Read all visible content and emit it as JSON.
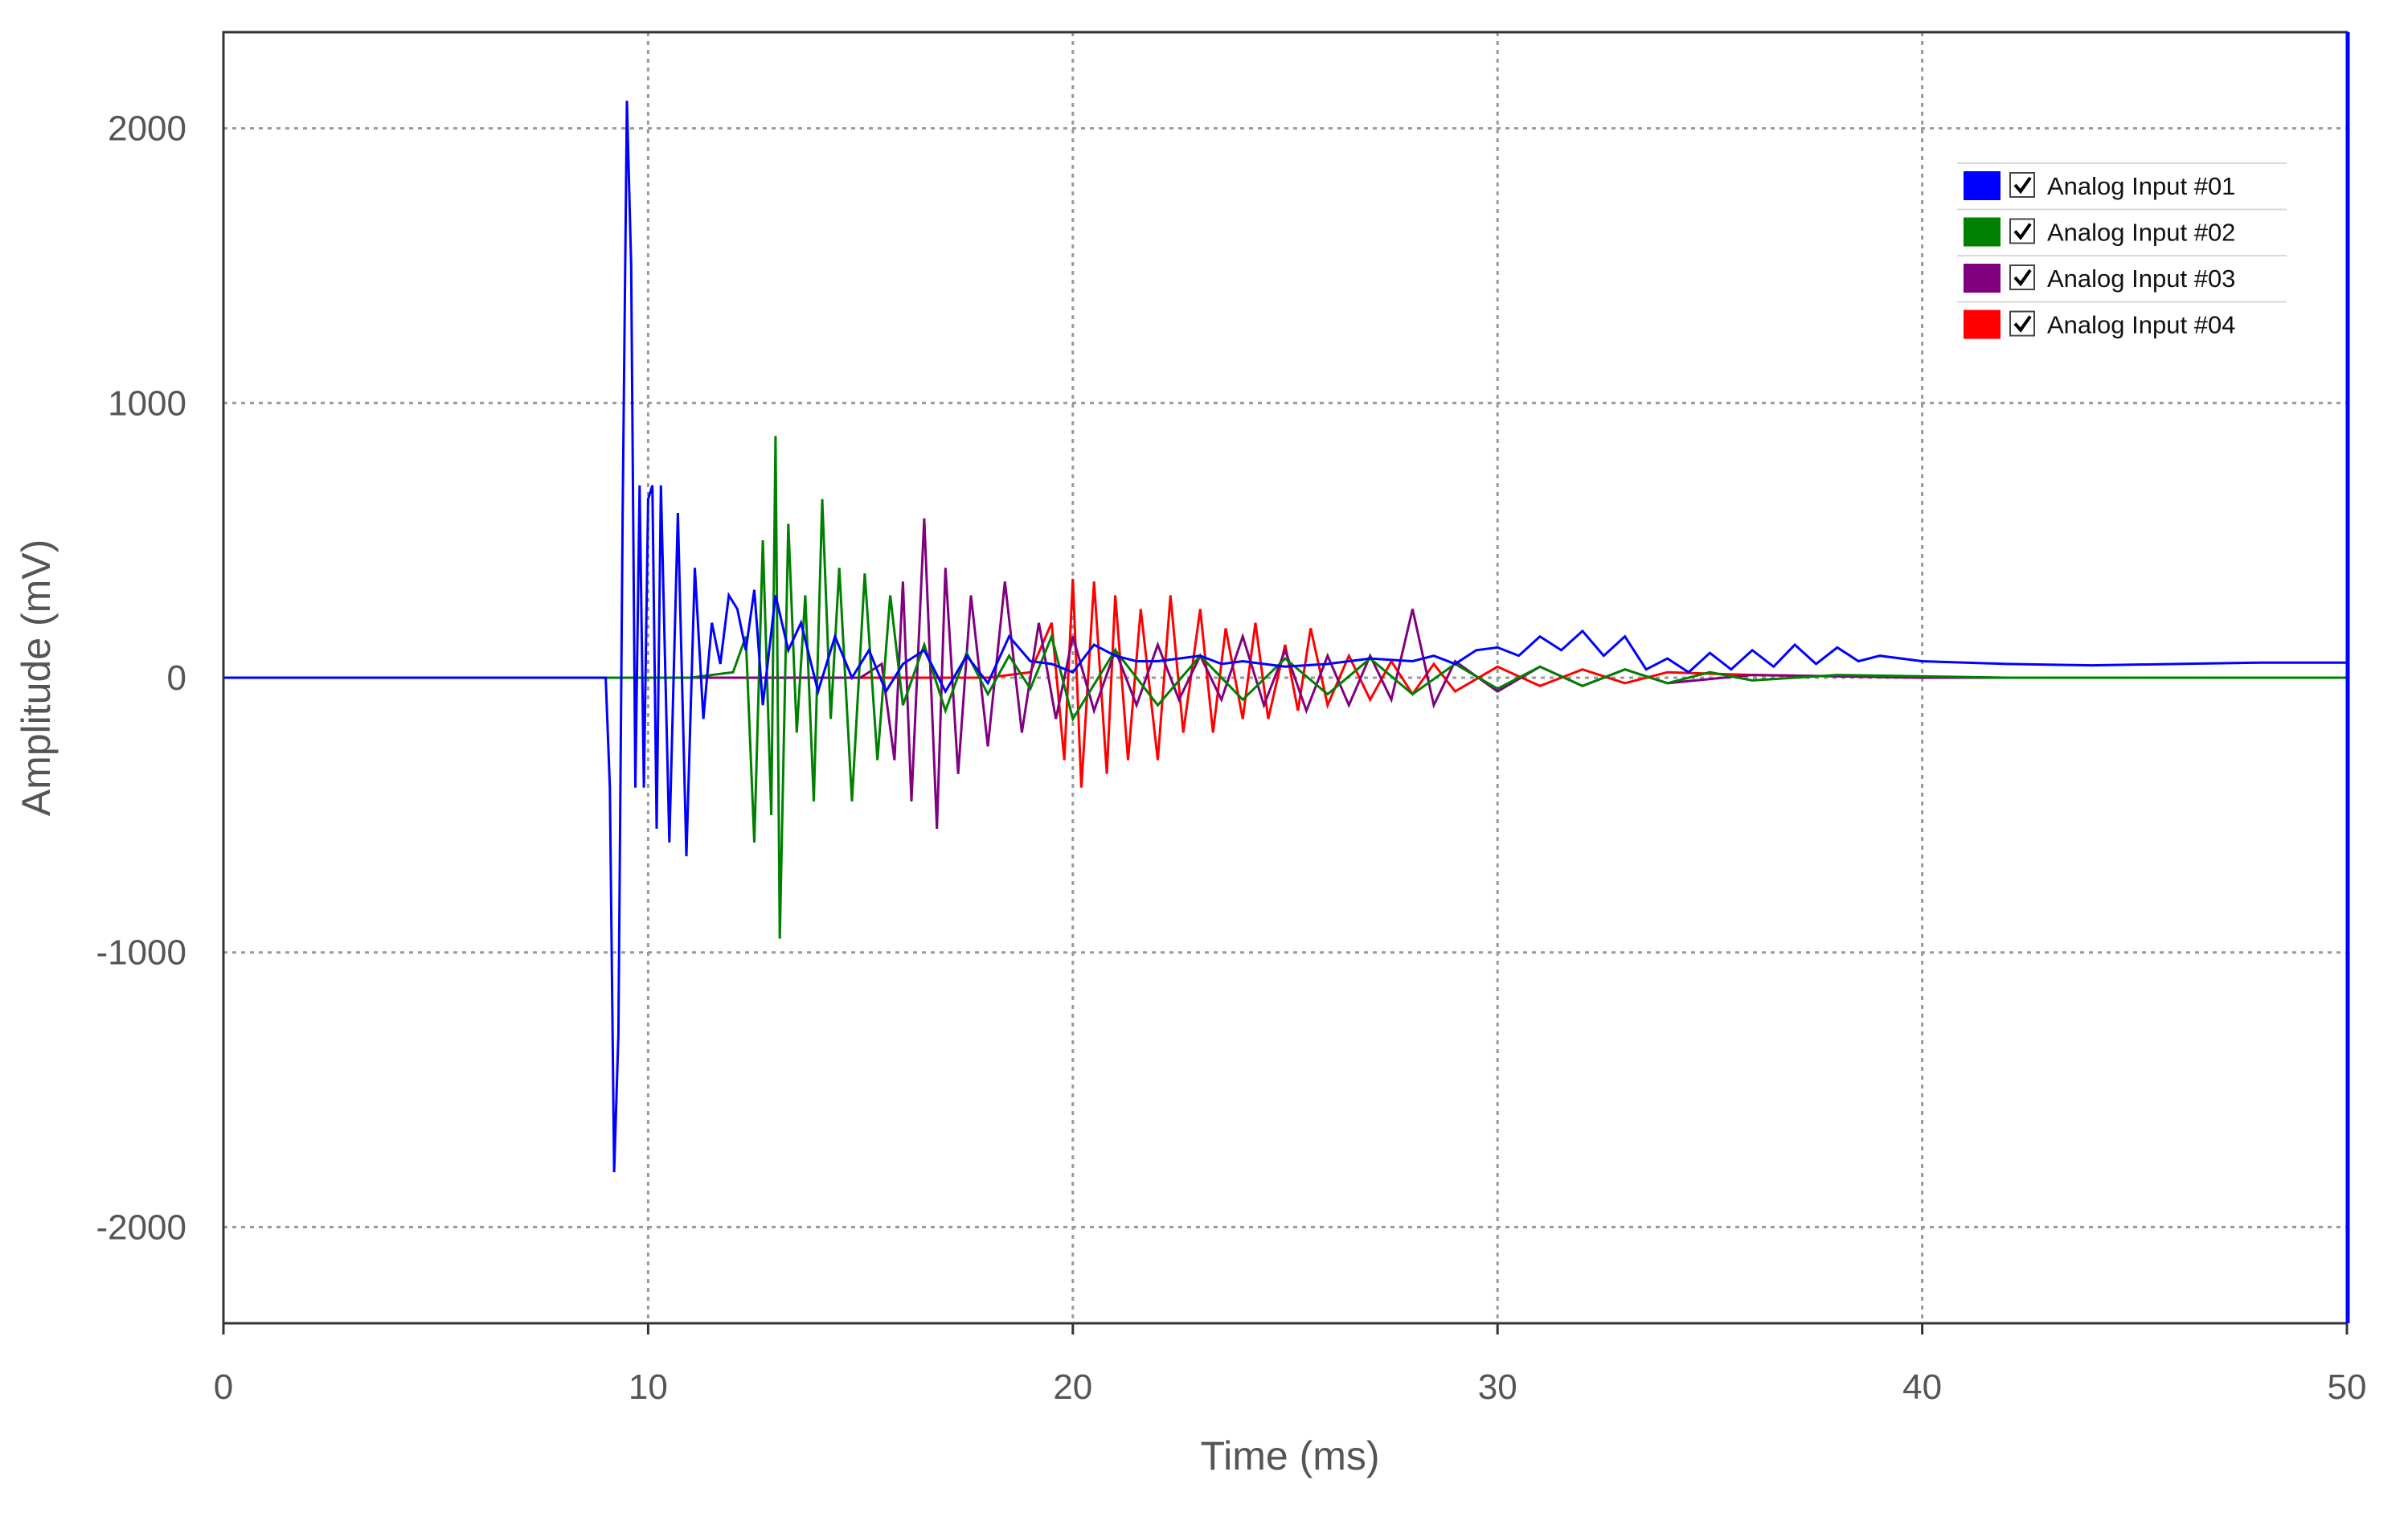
{
  "chart_data": {
    "type": "line",
    "title": "",
    "xlabel": "Time (ms)",
    "ylabel": "Amplitude (mV)",
    "xlim": [
      0,
      50
    ],
    "ylim": [
      -2350,
      2350
    ],
    "x_ticks": [
      0,
      10,
      20,
      30,
      40,
      50
    ],
    "x_tick_labels": [
      "0",
      "10",
      "20",
      "30",
      "40",
      "50"
    ],
    "y_ticks": [
      2000,
      1000,
      0,
      -1000,
      -2000
    ],
    "y_tick_labels": [
      "2000",
      "1000",
      "0",
      "-1000",
      "-2000"
    ],
    "grid": true,
    "legend_position": "top-right",
    "cursor_x": 50,
    "series": [
      {
        "name": "Analog Input #01",
        "color": "#0000ff",
        "checked": true,
        "x": [
          0,
          9.0,
          9.1,
          9.2,
          9.3,
          9.4,
          9.5,
          9.6,
          9.7,
          9.8,
          9.9,
          10.0,
          10.1,
          10.2,
          10.3,
          10.5,
          10.7,
          10.9,
          11.1,
          11.3,
          11.5,
          11.7,
          11.9,
          12.1,
          12.3,
          12.5,
          12.7,
          13.0,
          13.3,
          13.6,
          14.0,
          14.4,
          14.8,
          15.2,
          15.6,
          16.0,
          16.5,
          17.0,
          17.5,
          18.0,
          18.5,
          19.0,
          19.5,
          20.0,
          20.5,
          21.0,
          21.5,
          22.0,
          22.5,
          23.0,
          23.5,
          24.0,
          25.0,
          26.0,
          27.0,
          28.0,
          28.5,
          29.0,
          29.5,
          30.0,
          30.5,
          31.0,
          31.5,
          32.0,
          32.5,
          33.0,
          33.5,
          34.0,
          34.5,
          35.0,
          35.5,
          36.0,
          36.5,
          37.0,
          37.5,
          38.0,
          38.5,
          39.0,
          40.0,
          42.0,
          44.0,
          46.0,
          48.0,
          50.0
        ],
        "y": [
          0,
          0,
          -400,
          -1800,
          -1300,
          600,
          2100,
          1500,
          -400,
          700,
          -400,
          650,
          700,
          -550,
          700,
          -600,
          600,
          -650,
          400,
          -150,
          200,
          50,
          300,
          250,
          100,
          320,
          -100,
          300,
          100,
          200,
          -50,
          150,
          0,
          100,
          -50,
          50,
          100,
          -50,
          80,
          -20,
          150,
          60,
          50,
          20,
          120,
          80,
          60,
          60,
          70,
          80,
          50,
          60,
          40,
          50,
          70,
          60,
          80,
          50,
          100,
          110,
          80,
          150,
          100,
          170,
          80,
          150,
          30,
          70,
          20,
          90,
          30,
          100,
          40,
          120,
          50,
          110,
          60,
          80,
          60,
          50,
          45,
          50,
          55,
          55
        ]
      },
      {
        "name": "Analog Input #02",
        "color": "#008000",
        "checked": true,
        "x": [
          0,
          11.0,
          11.5,
          12.0,
          12.3,
          12.5,
          12.7,
          12.9,
          13.0,
          13.1,
          13.3,
          13.5,
          13.7,
          13.9,
          14.1,
          14.3,
          14.5,
          14.8,
          15.1,
          15.4,
          15.7,
          16.0,
          16.5,
          17.0,
          17.5,
          18.0,
          18.5,
          19.0,
          19.5,
          20.0,
          21.0,
          22.0,
          23.0,
          24.0,
          25.0,
          26.0,
          27.0,
          28.0,
          29.0,
          30.0,
          31.0,
          32.0,
          33.0,
          34.0,
          35.0,
          36.0,
          38.0,
          40.0,
          42.0,
          44.0,
          46.0,
          48.0,
          50.0
        ],
        "y": [
          0,
          0,
          10,
          20,
          150,
          -600,
          500,
          -500,
          880,
          -950,
          560,
          -200,
          300,
          -450,
          650,
          -150,
          400,
          -450,
          380,
          -300,
          300,
          -100,
          120,
          -120,
          90,
          -60,
          80,
          -40,
          150,
          -150,
          100,
          -100,
          80,
          -80,
          70,
          -60,
          70,
          -60,
          50,
          -40,
          40,
          -30,
          30,
          -20,
          20,
          -10,
          10,
          5,
          0,
          0,
          0,
          0,
          0
        ]
      },
      {
        "name": "Analog Input #03",
        "color": "#800080",
        "checked": true,
        "x": [
          0,
          15.0,
          15.5,
          15.8,
          16.0,
          16.2,
          16.5,
          16.8,
          17.0,
          17.3,
          17.6,
          18.0,
          18.4,
          18.8,
          19.2,
          19.6,
          20.0,
          20.5,
          21.0,
          21.5,
          22.0,
          22.5,
          23.0,
          23.5,
          24.0,
          24.5,
          25.0,
          25.5,
          26.0,
          26.5,
          27.0,
          27.5,
          28.0,
          28.5,
          29.0,
          30.0,
          31.0,
          32.0,
          33.0,
          34.0,
          36.0,
          38.0,
          40.0,
          44.0,
          50.0
        ],
        "y": [
          0,
          0,
          50,
          -300,
          350,
          -450,
          580,
          -550,
          400,
          -350,
          300,
          -250,
          350,
          -200,
          200,
          -150,
          150,
          -120,
          100,
          -100,
          120,
          -80,
          80,
          -80,
          150,
          -100,
          100,
          -120,
          80,
          -100,
          80,
          -80,
          250,
          -100,
          60,
          -50,
          40,
          -30,
          30,
          -20,
          10,
          5,
          0,
          0,
          0
        ]
      },
      {
        "name": "Analog Input #04",
        "color": "#ff0000",
        "checked": true,
        "x": [
          0,
          18.0,
          19.0,
          19.5,
          19.8,
          20.0,
          20.2,
          20.5,
          20.8,
          21.0,
          21.3,
          21.6,
          22.0,
          22.3,
          22.6,
          23.0,
          23.3,
          23.6,
          24.0,
          24.3,
          24.6,
          25.0,
          25.3,
          25.6,
          26.0,
          26.5,
          27.0,
          27.5,
          28.0,
          28.5,
          29.0,
          30.0,
          31.0,
          32.0,
          33.0,
          34.0,
          36.0,
          38.0,
          40.0,
          44.0,
          50.0
        ],
        "y": [
          0,
          0,
          20,
          200,
          -300,
          360,
          -400,
          350,
          -350,
          300,
          -300,
          250,
          -300,
          300,
          -200,
          250,
          -200,
          180,
          -150,
          200,
          -150,
          120,
          -120,
          180,
          -100,
          80,
          -80,
          60,
          -60,
          50,
          -50,
          40,
          -30,
          30,
          -20,
          20,
          10,
          5,
          0,
          0,
          0
        ]
      }
    ]
  }
}
